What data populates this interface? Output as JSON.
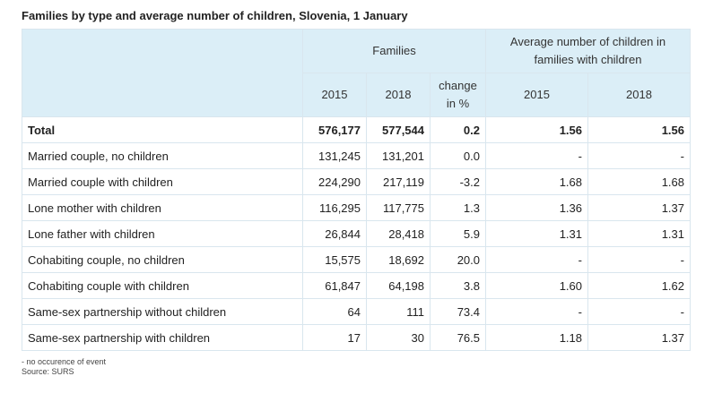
{
  "title": "Families by type and average number of children, Slovenia, 1 January",
  "header": {
    "families": "Families",
    "average": "Average number of children in families with children",
    "year_2015": "2015",
    "year_2018": "2018",
    "change": "change in %",
    "avg_2015": "2015",
    "avg_2018": "2018"
  },
  "rows": [
    {
      "label": "Total",
      "f2015": "576,177",
      "f2018": "577,544",
      "change": "0.2",
      "a2015": "1.56",
      "a2018": "1.56"
    },
    {
      "label": "Married couple, no children",
      "f2015": "131,245",
      "f2018": "131,201",
      "change": "0.0",
      "a2015": "-",
      "a2018": "-"
    },
    {
      "label": "Married couple with children",
      "f2015": "224,290",
      "f2018": "217,119",
      "change": "-3.2",
      "a2015": "1.68",
      "a2018": "1.68"
    },
    {
      "label": "Lone mother with children",
      "f2015": "116,295",
      "f2018": "117,775",
      "change": "1.3",
      "a2015": "1.36",
      "a2018": "1.37"
    },
    {
      "label": "Lone father with children",
      "f2015": "26,844",
      "f2018": "28,418",
      "change": "5.9",
      "a2015": "1.31",
      "a2018": "1.31"
    },
    {
      "label": "Cohabiting couple, no children",
      "f2015": "15,575",
      "f2018": "18,692",
      "change": "20.0",
      "a2015": "-",
      "a2018": "-"
    },
    {
      "label": "Cohabiting couple with children",
      "f2015": "61,847",
      "f2018": "64,198",
      "change": "3.8",
      "a2015": "1.60",
      "a2018": "1.62"
    },
    {
      "label": "Same-sex partnership without children",
      "f2015": "64",
      "f2018": "111",
      "change": "73.4",
      "a2015": "-",
      "a2018": "-"
    },
    {
      "label": "Same-sex partnership with children",
      "f2015": "17",
      "f2018": "30",
      "change": "76.5",
      "a2015": "1.18",
      "a2018": "1.37"
    }
  ],
  "notes": {
    "legend": "- no occurence of event",
    "source": "Source: SURS"
  }
}
